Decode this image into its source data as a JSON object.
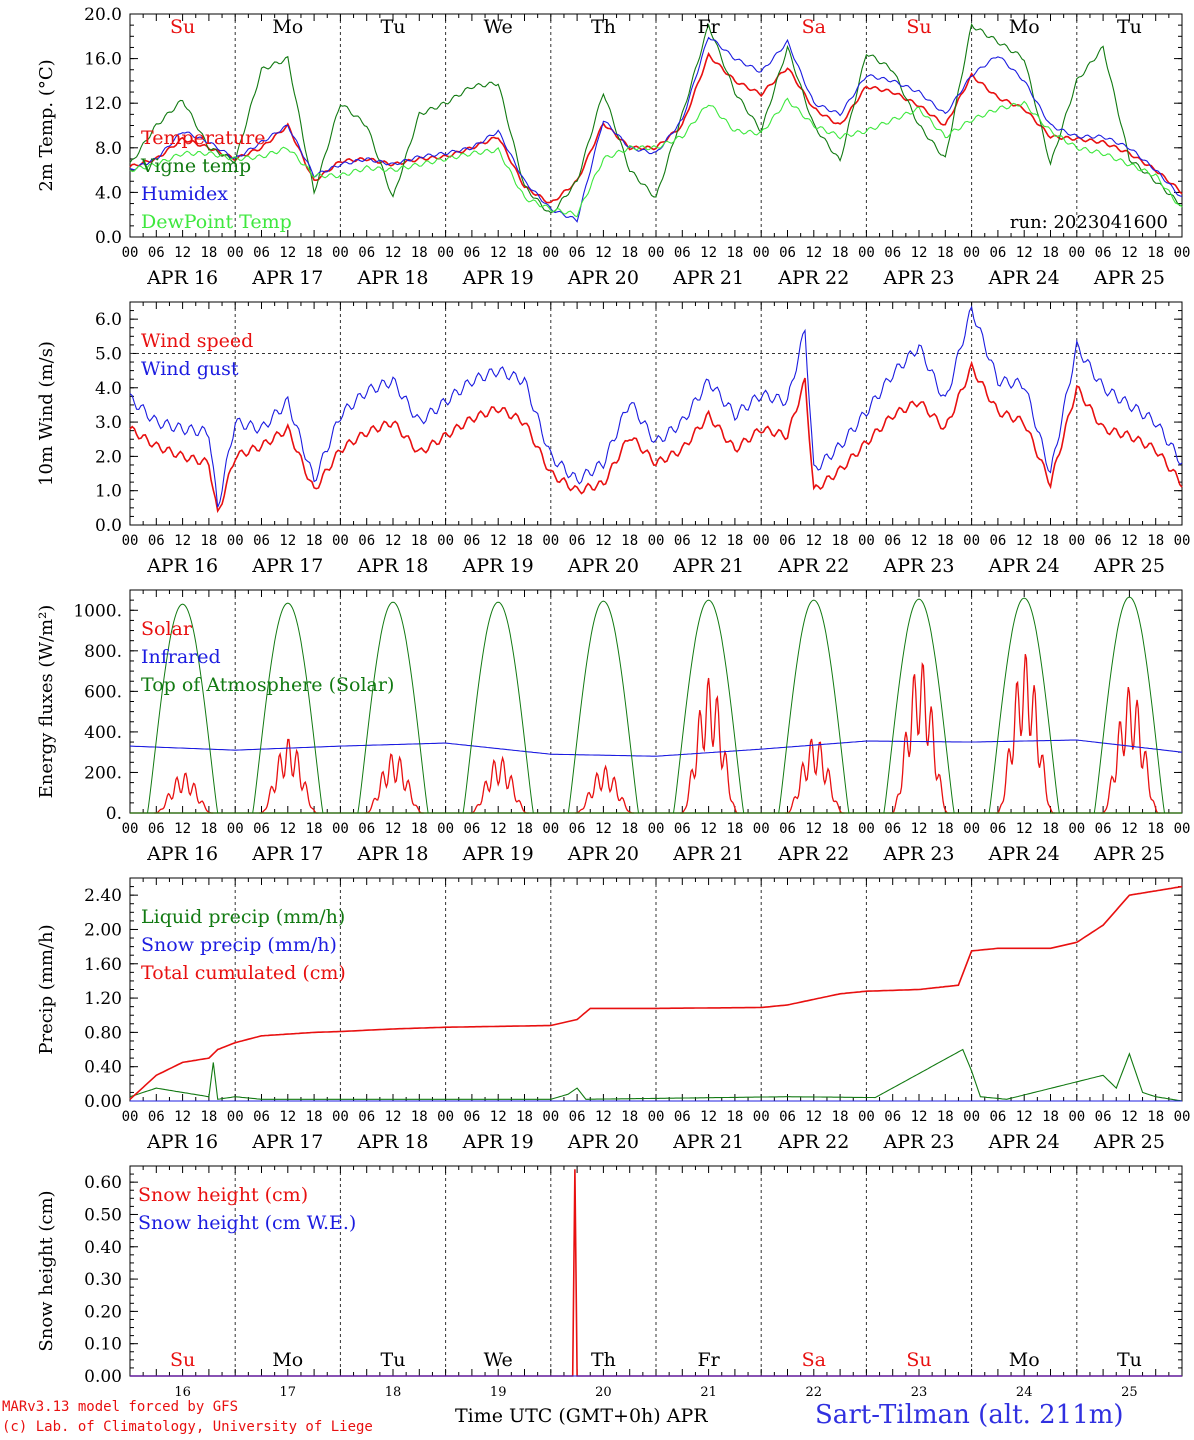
{
  "colors": {
    "red": "#e81010",
    "blue": "#1c1ce0",
    "green": "#127a12",
    "light_green": "#3ee83e",
    "grid": "#333333",
    "footer_red": "#e81010",
    "title_blue": "#3030e0"
  },
  "day_names": [
    {
      "label": "Su",
      "weekend": true
    },
    {
      "label": "Mo",
      "weekend": false
    },
    {
      "label": "Tu",
      "weekend": false
    },
    {
      "label": "We",
      "weekend": false
    },
    {
      "label": "Th",
      "weekend": false
    },
    {
      "label": "Fr",
      "weekend": false
    },
    {
      "label": "Sa",
      "weekend": true
    },
    {
      "label": "Su",
      "weekend": true
    },
    {
      "label": "Mo",
      "weekend": false
    },
    {
      "label": "Tu",
      "weekend": false
    }
  ],
  "date_labels": [
    "APR 16",
    "APR 17",
    "APR 18",
    "APR 19",
    "APR 20",
    "APR 21",
    "APR 22",
    "APR 23",
    "APR 24",
    "APR 25"
  ],
  "hour_ticks": [
    "00",
    "06",
    "12",
    "18"
  ],
  "hour_end": "00",
  "day_numbers": [
    "16",
    "17",
    "18",
    "19",
    "20",
    "21",
    "22",
    "23",
    "24",
    "25"
  ],
  "footer": {
    "model_line": "MARv3.13 model forced by GFS",
    "copyright_line": "(c) Lab. of Climatology, University of Liege",
    "x_axis_title": "Time UTC (GMT+0h) APR",
    "station": "Sart-Tilman (alt. 211m)"
  },
  "chart_data": [
    {
      "type": "line",
      "ylabel": "2m Temp. (°C)",
      "ylim": [
        0,
        20
      ],
      "yticks": [
        "0.0",
        "4.0",
        "8.0",
        "12.0",
        "16.0",
        "20.0"
      ],
      "annotation": "run: 2023041600",
      "x": [
        0,
        6,
        12,
        18,
        24,
        30,
        36,
        42,
        48,
        54,
        60,
        66,
        72,
        78,
        84,
        90,
        96,
        102,
        108,
        114,
        120,
        126,
        132,
        138,
        144,
        150,
        156,
        162,
        168,
        174,
        180,
        186,
        192,
        198,
        204,
        210,
        216,
        222,
        228,
        234,
        240
      ],
      "series": [
        {
          "name": "Temperature",
          "color": "red",
          "values": [
            6.3,
            7.0,
            8.8,
            8.0,
            7.0,
            8.0,
            10.0,
            5.0,
            6.8,
            7.0,
            6.5,
            7.0,
            7.2,
            8.0,
            9.0,
            4.5,
            3.0,
            5.0,
            10.2,
            8.0,
            8.0,
            10.0,
            16.3,
            14.0,
            12.8,
            15.2,
            11.5,
            10.0,
            13.5,
            13.0,
            11.8,
            10.0,
            14.5,
            12.5,
            11.5,
            9.0,
            8.8,
            8.5,
            7.5,
            6.0,
            4.0
          ]
        },
        {
          "name": "Vigne temp",
          "color": "green",
          "values": [
            6.5,
            10.0,
            12.3,
            8.0,
            6.8,
            15.0,
            16.0,
            4.0,
            12.0,
            10.0,
            3.5,
            11.0,
            12.0,
            13.5,
            13.8,
            4.5,
            2.0,
            5.0,
            13.0,
            6.0,
            3.5,
            11.0,
            19.0,
            13.0,
            9.5,
            17.0,
            10.0,
            6.8,
            16.5,
            15.0,
            10.0,
            7.0,
            19.0,
            17.5,
            16.0,
            6.5,
            14.0,
            17.0,
            7.0,
            5.0,
            2.8
          ]
        },
        {
          "name": "Humidex",
          "color": "blue",
          "values": [
            6.0,
            7.0,
            9.5,
            8.5,
            7.0,
            8.5,
            10.0,
            5.5,
            6.5,
            7.0,
            6.5,
            7.2,
            7.5,
            8.0,
            9.5,
            5.0,
            2.5,
            1.5,
            10.5,
            8.0,
            7.5,
            10.5,
            18.0,
            16.0,
            14.8,
            17.5,
            12.0,
            11.0,
            14.5,
            14.0,
            13.0,
            11.0,
            14.5,
            16.3,
            14.0,
            10.0,
            9.0,
            9.0,
            8.0,
            6.0,
            3.5
          ]
        },
        {
          "name": "DewPoint Temp",
          "color": "light_green",
          "values": [
            6.0,
            6.5,
            7.5,
            7.5,
            7.0,
            7.2,
            8.0,
            5.5,
            5.5,
            6.2,
            6.0,
            6.5,
            7.0,
            7.5,
            7.8,
            3.5,
            2.5,
            2.0,
            7.0,
            8.0,
            8.0,
            9.0,
            12.0,
            9.5,
            9.3,
            12.3,
            10.0,
            9.0,
            9.5,
            10.5,
            11.5,
            9.0,
            10.5,
            11.5,
            12.0,
            9.5,
            8.0,
            7.5,
            6.5,
            5.5,
            2.5
          ]
        }
      ]
    },
    {
      "type": "line",
      "ylabel": "10m Wind (m/s)",
      "ylim": [
        0,
        6.5
      ],
      "yticks": [
        "0.0",
        "1.0",
        "2.0",
        "3.0",
        "4.0",
        "5.0",
        "6.0"
      ],
      "reference_line": 5.0,
      "x": [
        0,
        6,
        12,
        18,
        20,
        24,
        30,
        36,
        42,
        48,
        54,
        60,
        66,
        72,
        78,
        84,
        90,
        96,
        102,
        108,
        114,
        120,
        126,
        132,
        138,
        144,
        150,
        154,
        156,
        162,
        168,
        174,
        180,
        186,
        192,
        198,
        204,
        210,
        216,
        222,
        228,
        234,
        240
      ],
      "series": [
        {
          "name": "Wind speed",
          "color": "red",
          "values": [
            2.8,
            2.3,
            2.0,
            1.8,
            0.3,
            2.0,
            2.3,
            2.8,
            1.0,
            2.2,
            2.7,
            3.0,
            2.1,
            2.6,
            3.1,
            3.4,
            3.0,
            1.5,
            1.0,
            1.2,
            2.6,
            1.8,
            2.2,
            3.2,
            2.2,
            2.8,
            2.6,
            4.2,
            1.0,
            1.6,
            2.4,
            3.2,
            3.6,
            2.8,
            4.6,
            3.3,
            3.0,
            1.2,
            4.0,
            2.8,
            2.6,
            2.2,
            1.2
          ]
        },
        {
          "name": "Wind gust",
          "color": "blue",
          "values": [
            3.7,
            3.0,
            2.8,
            2.7,
            0.5,
            3.0,
            2.8,
            3.6,
            1.3,
            3.2,
            3.9,
            4.2,
            3.0,
            3.6,
            4.2,
            4.5,
            4.2,
            2.0,
            1.3,
            1.8,
            3.6,
            2.4,
            3.0,
            4.2,
            3.2,
            3.8,
            3.6,
            5.7,
            1.6,
            2.3,
            3.3,
            4.4,
            5.2,
            3.6,
            6.3,
            4.2,
            4.1,
            1.5,
            5.2,
            4.0,
            3.5,
            3.0,
            1.8
          ]
        }
      ]
    },
    {
      "type": "line",
      "ylabel": "Energy fluxes (W/m²)",
      "ylim": [
        0,
        1100
      ],
      "yticks": [
        "0.",
        "200.",
        "400.",
        "600.",
        "800.",
        "1000."
      ],
      "series": [
        {
          "name": "Solar",
          "color": "red",
          "daily_peaks": [
            200,
            370,
            300,
            280,
            230,
            670,
            380,
            760,
            790,
            630
          ]
        },
        {
          "name": "Infrared",
          "color": "blue",
          "x": [
            0,
            24,
            48,
            72,
            96,
            120,
            144,
            168,
            192,
            216,
            240
          ],
          "values": [
            330,
            310,
            330,
            345,
            290,
            280,
            315,
            355,
            350,
            360,
            300
          ]
        },
        {
          "name": "Top of Atmosphere (Solar)",
          "color": "green",
          "daily_peaks": [
            1030,
            1035,
            1040,
            1040,
            1045,
            1050,
            1050,
            1055,
            1060,
            1065
          ]
        }
      ]
    },
    {
      "type": "line",
      "ylabel": "Precip (mm/h)",
      "ylim": [
        0,
        2.6
      ],
      "yticks": [
        "0.00",
        "0.40",
        "0.80",
        "1.20",
        "1.60",
        "2.00",
        "2.40"
      ],
      "series": [
        {
          "name": "Liquid precip (mm/h)",
          "color": "green",
          "x": [
            0,
            6,
            12,
            18,
            19,
            20,
            24,
            30,
            96,
            100,
            102,
            104,
            150,
            170,
            190,
            192,
            194,
            200,
            222,
            225,
            228,
            231,
            234,
            240
          ],
          "values": [
            0.05,
            0.15,
            0.1,
            0.05,
            0.45,
            0.02,
            0.05,
            0.02,
            0.02,
            0.08,
            0.15,
            0.02,
            0.05,
            0.04,
            0.6,
            0.35,
            0.05,
            0.02,
            0.3,
            0.15,
            0.55,
            0.1,
            0.05,
            0.0
          ]
        },
        {
          "name": "Snow precip (mm/h)",
          "color": "blue",
          "x": [
            0,
            240
          ],
          "values": [
            0,
            0
          ]
        },
        {
          "name": "Total cumulated (cm)",
          "color": "red",
          "x": [
            0,
            6,
            12,
            18,
            20,
            24,
            30,
            42,
            48,
            60,
            72,
            84,
            96,
            102,
            105,
            120,
            144,
            150,
            162,
            168,
            180,
            189,
            192,
            198,
            210,
            216,
            222,
            228,
            240
          ],
          "values": [
            0.02,
            0.3,
            0.45,
            0.5,
            0.6,
            0.68,
            0.76,
            0.8,
            0.81,
            0.84,
            0.86,
            0.87,
            0.88,
            0.95,
            1.08,
            1.08,
            1.09,
            1.12,
            1.25,
            1.28,
            1.3,
            1.35,
            1.75,
            1.78,
            1.78,
            1.85,
            2.05,
            2.4,
            2.5
          ]
        }
      ]
    },
    {
      "type": "line",
      "ylabel": "Snow height (cm)",
      "ylim": [
        0,
        0.65
      ],
      "yticks": [
        "0.00",
        "0.10",
        "0.20",
        "0.30",
        "0.40",
        "0.50",
        "0.60"
      ],
      "series": [
        {
          "name": "Snow height (cm)",
          "color": "red",
          "x": [
            0,
            101,
            101.5,
            102,
            240
          ],
          "values": [
            0,
            0,
            0.64,
            0,
            0
          ]
        },
        {
          "name": "Snow height (cm W.E.)",
          "color": "blue",
          "x": [
            0,
            240
          ],
          "values": [
            0,
            0
          ]
        }
      ]
    }
  ]
}
